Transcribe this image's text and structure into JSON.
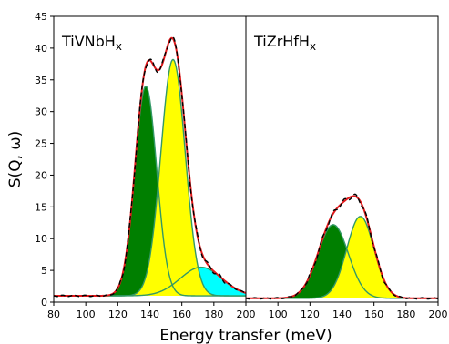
{
  "chart_data": {
    "type": "area",
    "ylabel": "S(Q, ω)",
    "xlabel": "Energy transfer (meV)",
    "ylim": [
      0,
      45
    ],
    "yticks": [
      0,
      5,
      10,
      15,
      20,
      25,
      30,
      35,
      40,
      45
    ],
    "grid": false,
    "colors": {
      "measured": "#000000",
      "fit": "#e31a1c",
      "peak_1": "#007f00",
      "peak_2": "#ffff00",
      "peak_3": "#00ffff",
      "component_line": "#339966"
    },
    "panels": [
      {
        "label": "TiVNbH",
        "label_sub": "x",
        "xlim": [
          80,
          200
        ],
        "xticks": [
          80,
          100,
          120,
          140,
          160,
          180,
          200
        ],
        "baseline": 1.0,
        "components": [
          {
            "center": 137.5,
            "amplitude": 33.0,
            "sigma": 6.8,
            "fill": "#007f00",
            "order": 1
          },
          {
            "center": 154.5,
            "amplitude": 37.2,
            "sigma": 7.6,
            "fill": "#ffff00",
            "order": 2
          },
          {
            "center": 172.0,
            "amplitude": 4.5,
            "sigma": 13.0,
            "fill": "#00ffff",
            "order": 0
          }
        ]
      },
      {
        "label": "TiZrHfH",
        "label_sub": "x",
        "xlim": [
          0,
          200
        ],
        "xticks": [
          0,
          20,
          40,
          60,
          80,
          100,
          120,
          140,
          160,
          180,
          200
        ],
        "x_range_data": [
          80,
          200
        ],
        "baseline": 0.6,
        "components": [
          {
            "center": 134.5,
            "amplitude": 11.6,
            "sigma": 9.5,
            "fill": "#007f00",
            "order": 1
          },
          {
            "center": 151.5,
            "amplitude": 12.9,
            "sigma": 8.5,
            "fill": "#ffff00",
            "order": 2
          }
        ]
      }
    ]
  }
}
